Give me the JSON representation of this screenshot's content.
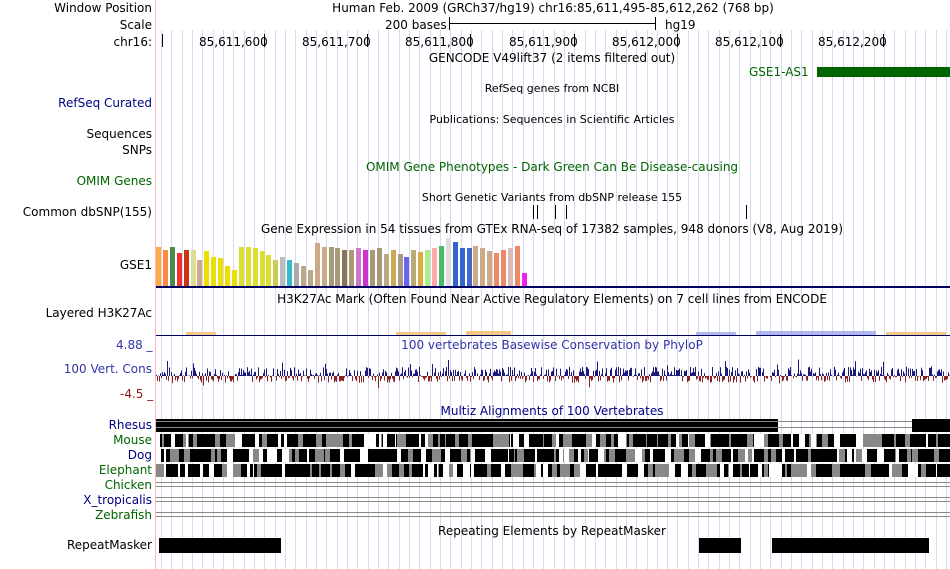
{
  "header": {
    "window_position_label": "Window Position",
    "scale_label": "Scale",
    "chrom_label": "chr16:",
    "position_text": "Human Feb. 2009 (GRCh37/hg19)   chr16:85,611,495-85,612,262 (768 bp)",
    "scale_text": "200 bases",
    "assembly": "hg19",
    "coordinates": [
      "85,611,600",
      "85,611,700",
      "85,611,800",
      "85,611,900",
      "85,612,000",
      "85,612,100",
      "85,612,200"
    ]
  },
  "tracks": {
    "gencode": {
      "title": "GENCODE V49lift37 (2 items filtered out)",
      "feature_label": "GSE1-AS1",
      "color": "#006400"
    },
    "refseq": {
      "label": "RefSeq Curated",
      "title": "RefSeq genes from NCBI"
    },
    "publications": {
      "title": "Publications: Sequences in Scientific Articles"
    },
    "sequences": {
      "label": "Sequences"
    },
    "snps": {
      "label": "SNPs"
    },
    "omim": {
      "label": "OMIM Genes",
      "title": "OMIM Gene Phenotypes - Dark Green Can Be Disease-causing"
    },
    "dbsnp": {
      "label": "Common dbSNP(155)",
      "title": "Short Genetic Variants from dbSNP release 155"
    },
    "gtex": {
      "label": "GSE1",
      "title": "Gene Expression in 54 tissues from GTEx RNA-seq of 17382 samples, 948 donors (V8, Aug 2019)",
      "values": [
        0.78,
        0.72,
        0.78,
        0.66,
        0.72,
        0.72,
        0.52,
        0.7,
        0.58,
        0.55,
        0.4,
        0.32,
        0.78,
        0.78,
        0.75,
        0.7,
        0.62,
        0.52,
        0.58,
        0.52,
        0.45,
        0.4,
        0.32,
        0.85,
        0.78,
        0.78,
        0.75,
        0.72,
        0.72,
        0.76,
        0.72,
        0.72,
        0.75,
        0.64,
        0.72,
        0.64,
        0.58,
        0.72,
        0.68,
        0.72,
        0.75,
        0.8,
        0.95,
        0.88,
        0.75,
        0.75,
        0.8,
        0.75,
        0.7,
        0.66,
        0.72,
        0.75,
        0.8,
        0.25
      ],
      "colors": [
        "#ffaa44",
        "#ff8844",
        "#4a8a4a",
        "#ee3333",
        "#cc3311",
        "#dddd99",
        "#ccaa88",
        "#eedd00",
        "#eedd00",
        "#eedd00",
        "#eedd00",
        "#eedd00",
        "#dddd33",
        "#dddd33",
        "#dddd33",
        "#dddd33",
        "#dddd33",
        "#cccc55",
        "#bbbbbb",
        "#33bbcc",
        "#aaaaaa",
        "#bbaa88",
        "#bbaa88",
        "#ccaa88",
        "#ccaa88",
        "#aa9977",
        "#aa9977",
        "#887755",
        "#aa9977",
        "#cc77cc",
        "#cc33cc",
        "#aa9977",
        "#aa9977",
        "#bbaa88",
        "#ccaa55",
        "#aa9988",
        "#6666ee",
        "#bbaa77",
        "#ddaa44",
        "#aaee88",
        "#ffaaaa",
        "#44bb66",
        "#dddddd",
        "#3366cc",
        "#3366cc",
        "#4466cc",
        "#ccaa88",
        "#ccaa88",
        "#ccaa88",
        "#ee8866",
        "#ee8866",
        "#ddbbbb",
        "#ee8866",
        "#ee22ee"
      ]
    },
    "h3k27ac": {
      "label": "Layered H3K27Ac",
      "title": "H3K27Ac Mark (Often Found Near Active Regulatory Elements) on 7 cell lines from ENCODE"
    },
    "conservation": {
      "label": "100 Vert. Cons",
      "title": "100 vertebrates Basewise Conservation by PhyloP",
      "y_max": "4.88 _",
      "y_min": "-4.5 _",
      "pos_color": "#1a1a7a",
      "neg_color": "#8b2222"
    },
    "multiz": {
      "title": "Multiz Alignments of 100 Vertebrates",
      "species": [
        "Rhesus",
        "Mouse",
        "Dog",
        "Elephant",
        "Chicken",
        "X_tropicalis",
        "Zebrafish"
      ]
    },
    "repeatmasker": {
      "label": "RepeatMasker",
      "title": "Repeating Elements by RepeatMasker"
    }
  }
}
